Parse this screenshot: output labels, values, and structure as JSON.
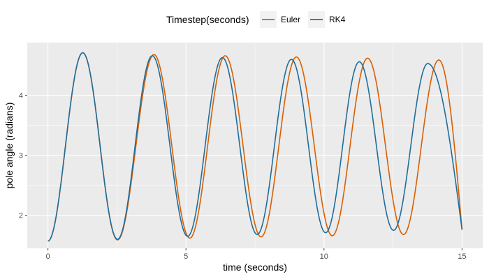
{
  "chart_data": {
    "type": "line",
    "title": "",
    "xlabel": "time (seconds)",
    "ylabel": "pole angle (radians)",
    "xlim": [
      -0.75,
      15.75
    ],
    "ylim": [
      1.45,
      4.88
    ],
    "x_ticks": [
      0,
      5,
      10,
      15
    ],
    "x_tick_labels": [
      "0",
      "5",
      "10",
      "15"
    ],
    "y_ticks": [
      2,
      3,
      4
    ],
    "y_tick_labels": [
      "2",
      "3",
      "4"
    ],
    "grid": true,
    "panel_background": "#ebebeb",
    "legend": {
      "title": "Timestep(seconds)",
      "placement": "top",
      "entries": [
        "Euler",
        "RK4"
      ]
    },
    "series": [
      {
        "name": "Euler",
        "color": "#d95f02",
        "points": [
          [
            0.0,
            1.57
          ],
          [
            1.26,
            4.71
          ],
          [
            2.52,
            1.59
          ],
          [
            3.84,
            4.68
          ],
          [
            5.14,
            1.62
          ],
          [
            6.42,
            4.66
          ],
          [
            7.72,
            1.64
          ],
          [
            9.0,
            4.64
          ],
          [
            10.3,
            1.66
          ],
          [
            11.58,
            4.62
          ],
          [
            12.88,
            1.68
          ],
          [
            14.16,
            4.59
          ],
          [
            15.0,
            1.76
          ]
        ]
      },
      {
        "name": "RK4",
        "color": "#1f6e9c",
        "points": [
          [
            0.0,
            1.57
          ],
          [
            1.26,
            4.71
          ],
          [
            2.52,
            1.6
          ],
          [
            3.78,
            4.66
          ],
          [
            5.06,
            1.65
          ],
          [
            6.32,
            4.63
          ],
          [
            7.58,
            1.68
          ],
          [
            8.82,
            4.6
          ],
          [
            10.06,
            1.71
          ],
          [
            11.28,
            4.56
          ],
          [
            12.52,
            1.75
          ],
          [
            13.76,
            4.53
          ],
          [
            15.0,
            1.76
          ]
        ]
      }
    ]
  }
}
